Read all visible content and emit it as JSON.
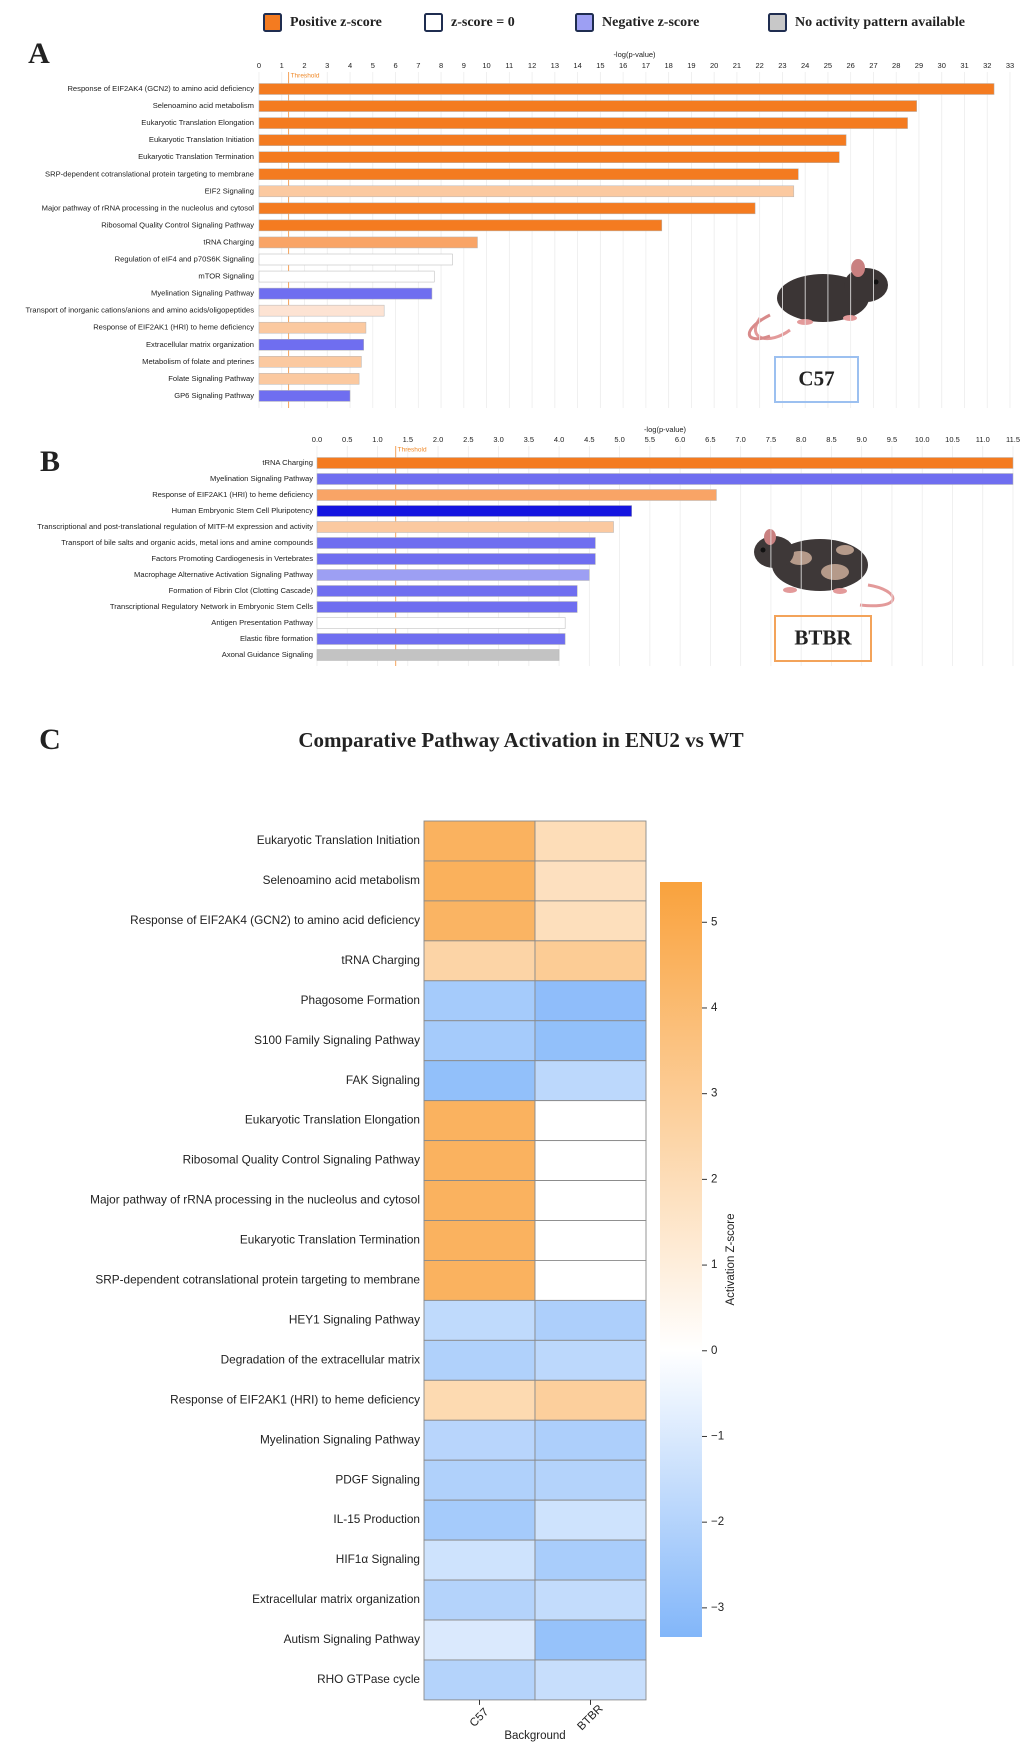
{
  "legend": [
    {
      "name": "Positive z-score",
      "color": "#f47b20"
    },
    {
      "name": "z-score = 0",
      "color": "#ffffff"
    },
    {
      "name": "Negative z-score",
      "color": "#9d9ff3"
    },
    {
      "name": "No activity pattern available",
      "color": "#c8c8c8"
    }
  ],
  "chart_data": [
    {
      "type": "bar",
      "panel": "A",
      "xlabel": "-log(p-value)",
      "threshold": 1.3,
      "threshold_label": "Threshold",
      "strain": "C57",
      "categories": [
        "Response of EIF2AK4 (GCN2) to amino acid deficiency",
        "Selenoamino acid metabolism",
        "Eukaryotic Translation Elongation",
        "Eukaryotic Translation Initiation",
        "Eukaryotic Translation Termination",
        "SRP-dependent cotranslational protein targeting to membrane",
        "EIF2 Signaling",
        "Major pathway of rRNA processing in the nucleolus and cytosol",
        "Ribosomal Quality Control Signaling Pathway",
        "tRNA Charging",
        "Regulation of eIF4 and p70S6K Signaling",
        "mTOR Signaling",
        "Myelination Signaling Pathway",
        "Transport of inorganic cations/anions and amino acids/oligopeptides",
        "Response of EIF2AK1 (HRI) to heme deficiency",
        "Extracellular matrix organization",
        "Metabolism of folate and pterines",
        "Folate Signaling Pathway",
        "GP6 Signaling Pathway"
      ],
      "values": [
        32.3,
        28.9,
        28.5,
        25.8,
        25.5,
        23.7,
        23.5,
        21.8,
        17.7,
        9.6,
        8.5,
        7.7,
        7.6,
        5.5,
        4.7,
        4.6,
        4.5,
        4.4,
        4.0
      ],
      "colors": [
        "#f47b20",
        "#f47b20",
        "#f47b20",
        "#f47b20",
        "#f47b20",
        "#f47b20",
        "#fbc9a0",
        "#f47b20",
        "#f47b20",
        "#f9a466",
        "#ffffff",
        "#ffffff",
        "#6f6ef0",
        "#fde3d3",
        "#fbc9a0",
        "#6f6ef0",
        "#fbc9a0",
        "#fbc9a0",
        "#6f6ef0"
      ],
      "xlim": [
        0,
        33
      ],
      "xticks": [
        0,
        1,
        2,
        3,
        4,
        5,
        6,
        7,
        8,
        9,
        10,
        11,
        12,
        13,
        14,
        15,
        16,
        17,
        18,
        19,
        20,
        21,
        22,
        23,
        24,
        25,
        26,
        27,
        28,
        29,
        30,
        31,
        32,
        33
      ],
      "grid": true
    },
    {
      "type": "bar",
      "panel": "B",
      "xlabel": "-log(p-value)",
      "threshold": 1.3,
      "threshold_label": "Threshold",
      "strain": "BTBR",
      "categories": [
        "tRNA Charging",
        "Myelination Signaling Pathway",
        "Response of EIF2AK1 (HRI) to heme deficiency",
        "Human Embryonic Stem Cell Pluripotency",
        "Transcriptional and post-translational regulation of MITF-M expression and activity",
        "Transport of bile salts and organic acids, metal ions and amine compounds",
        "Factors Promoting Cardiogenesis in Vertebrates",
        "Macrophage Alternative Activation Signaling Pathway",
        "Formation of Fibrin Clot (Clotting Cascade)",
        "Transcriptional Regulatory Network in Embryonic Stem Cells",
        "Antigen Presentation Pathway",
        "Elastic fibre formation",
        "Axonal Guidance Signaling"
      ],
      "values": [
        11.5,
        11.5,
        6.6,
        5.2,
        4.9,
        4.6,
        4.6,
        4.5,
        4.3,
        4.3,
        4.1,
        4.1,
        4.0
      ],
      "colors": [
        "#f47b20",
        "#6f6ef0",
        "#f9a466",
        "#1515e0",
        "#fbc9a0",
        "#6f6ef0",
        "#6f6ef0",
        "#9d9ff3",
        "#6f6ef0",
        "#6f6ef0",
        "#ffffff",
        "#6f6ef0",
        "#c3c3c3"
      ],
      "xlim": [
        0,
        11.5
      ],
      "xticks": [
        {
          "value": 0,
          "label": "0.0"
        },
        0.5,
        {
          "value": 1,
          "label": "1.0"
        },
        1.5,
        {
          "value": 2,
          "label": "2.0"
        },
        2.5,
        {
          "value": 3,
          "label": "3.0"
        },
        3.5,
        {
          "value": 4,
          "label": "4.0"
        },
        4.5,
        {
          "value": 5,
          "label": "5.0"
        },
        5.5,
        {
          "value": 6,
          "label": "6.0"
        },
        6.5,
        {
          "value": 7,
          "label": "7.0"
        },
        7.5,
        {
          "value": 8,
          "label": "8.0"
        },
        8.5,
        {
          "value": 9,
          "label": "9.0"
        },
        9.5,
        {
          "value": 10,
          "label": "10.0"
        },
        10.5,
        {
          "value": 11,
          "label": "11.0"
        },
        11.5
      ],
      "grid": true
    },
    {
      "type": "heatmap",
      "panel": "C",
      "title": "Comparative Pathway Activation in ENU2 vs WT",
      "xlabel": "Background",
      "colorbar_label": "Activation Z-score",
      "columns": [
        "C57",
        "BTBR"
      ],
      "rows": [
        "Eukaryotic Translation Initiation",
        "Selenoamino acid metabolism",
        "Response of EIF2AK4 (GCN2) to amino acid deficiency",
        "tRNA Charging",
        "Phagosome Formation",
        "S100 Family Signaling Pathway",
        "FAK Signaling",
        "Eukaryotic Translation Elongation",
        "Ribosomal Quality Control Signaling Pathway",
        "Major pathway of rRNA processing in the nucleolus and cytosol",
        "Eukaryotic Translation Termination",
        "SRP-dependent cotranslational protein targeting to membrane",
        "HEY1 Signaling Pathway",
        "Degradation of the extracellular matrix",
        "Response of EIF2AK1 (HRI) to heme deficiency",
        "Myelination Signaling Pathway",
        "PDGF Signaling",
        "IL-15 Production",
        "HIF1α Signaling",
        "Extracellular matrix organization",
        "Autism Signaling Pathway",
        "RHO GTPase cycle"
      ],
      "values": [
        [
          4.5,
          2.0
        ],
        [
          4.6,
          1.8
        ],
        [
          4.4,
          1.9
        ],
        [
          2.5,
          3.0
        ],
        [
          -2.4,
          -3.0
        ],
        [
          -2.4,
          -2.9
        ],
        [
          -2.9,
          -1.8
        ],
        [
          4.5,
          0
        ],
        [
          4.5,
          0
        ],
        [
          4.5,
          0
        ],
        [
          4.5,
          0
        ],
        [
          4.5,
          0
        ],
        [
          -1.7,
          -2.2
        ],
        [
          -2.1,
          -1.8
        ],
        [
          2.2,
          2.8
        ],
        [
          -1.9,
          -2.2
        ],
        [
          -2.1,
          -2.0
        ],
        [
          -2.4,
          -1.3
        ],
        [
          -1.3,
          -2.3
        ],
        [
          -2.0,
          -1.6
        ],
        [
          -1.0,
          -2.8
        ],
        [
          -2.0,
          -1.5
        ]
      ],
      "colormap": [
        "#82b6f9",
        "#ffffff",
        "#f9a23d"
      ],
      "zlim": [
        -3.34,
        5.47
      ],
      "zticks": [
        {
          "value": -3,
          "label": "−3"
        },
        {
          "value": -2,
          "label": "−2"
        },
        {
          "value": -1,
          "label": "−1"
        },
        0,
        1,
        2,
        3,
        4,
        5
      ]
    }
  ]
}
